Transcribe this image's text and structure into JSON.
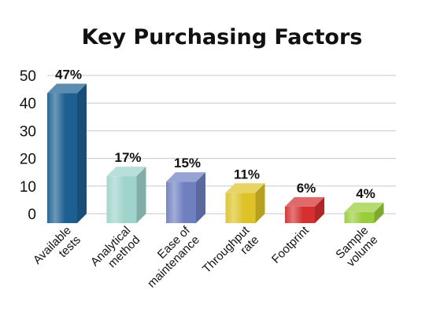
{
  "chart_data": {
    "type": "bar",
    "title": "Key Purchasing Factors",
    "xlabel": "",
    "ylabel": "",
    "ylim": [
      0,
      50
    ],
    "yticks": [
      0,
      10,
      20,
      30,
      40,
      50
    ],
    "grid": true,
    "categories": [
      [
        "Available",
        "tests"
      ],
      [
        "Analytical",
        "method"
      ],
      [
        "Ease of",
        "maintenance"
      ],
      [
        "Throughput",
        "rate"
      ],
      [
        "Footprint"
      ],
      [
        "Sample",
        "volume"
      ]
    ],
    "values": [
      47,
      17,
      15,
      11,
      6,
      4
    ],
    "data_labels": [
      "47%",
      "17%",
      "15%",
      "11%",
      "6%",
      "4%"
    ],
    "colors": [
      "#1d5f91",
      "#9fd3cc",
      "#6f7fc0",
      "#ddc328",
      "#d62f2f",
      "#9acd3a"
    ]
  }
}
